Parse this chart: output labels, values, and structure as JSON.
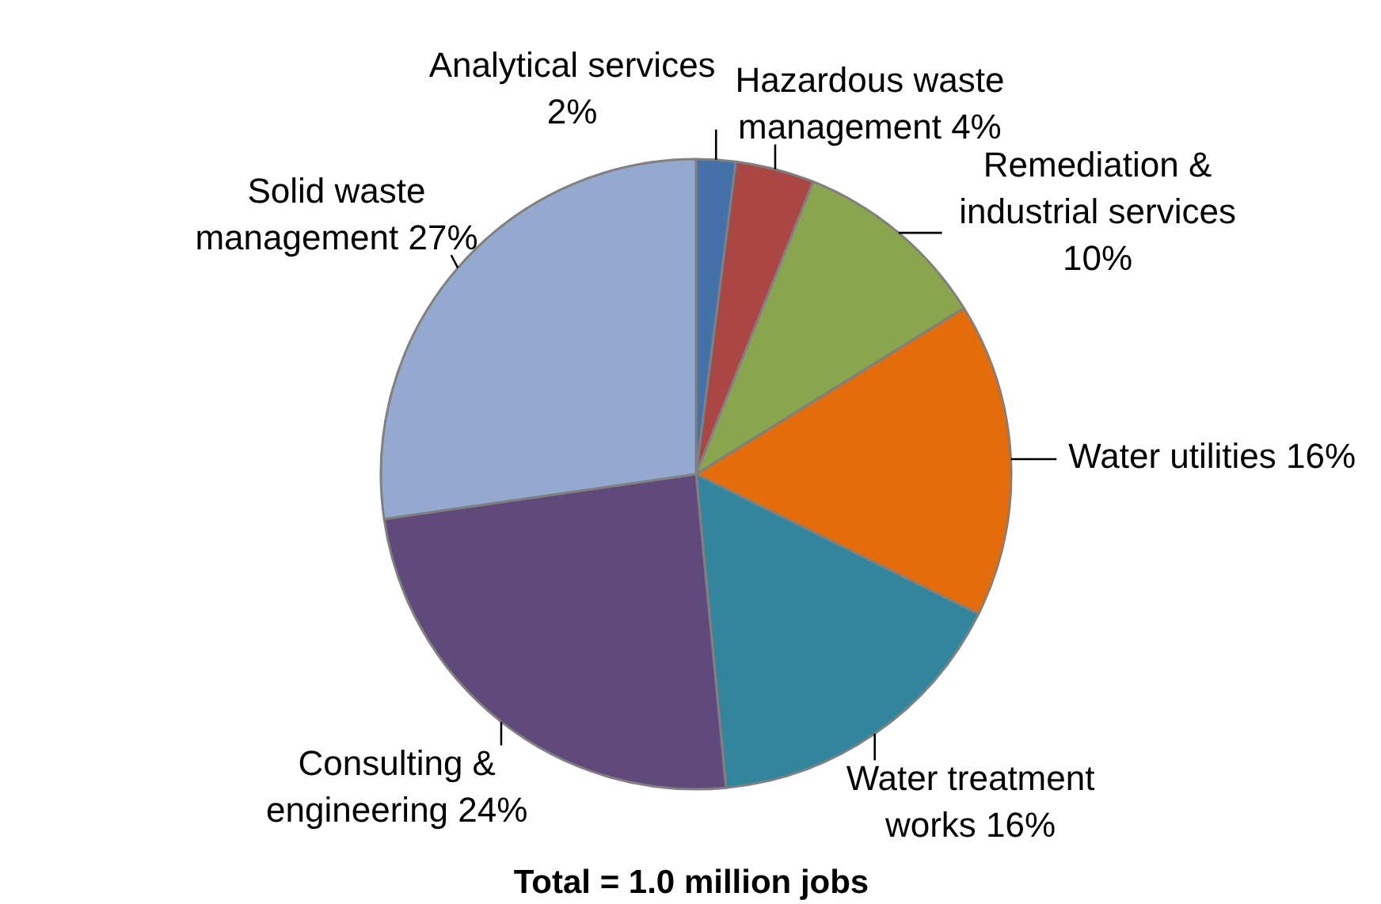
{
  "chart_data": {
    "type": "pie",
    "categories": [
      "Analytical services",
      "Hazardous waste management",
      "Remediation & industrial services",
      "Water utilities",
      "Water treatment works",
      "Consulting & engineering",
      "Solid waste management"
    ],
    "values": [
      2,
      4,
      10,
      16,
      16,
      24,
      27
    ],
    "colors": [
      "#4472a8",
      "#aa4643",
      "#89a54e",
      "#e46c0a",
      "#31859c",
      "#604a7b",
      "#93a9cf"
    ],
    "value_labels": [
      "2%",
      "4%",
      "10%",
      "16%",
      "16%",
      "24%",
      "27%"
    ],
    "annotations": [
      "Total = 1.0 million jobs"
    ]
  }
}
